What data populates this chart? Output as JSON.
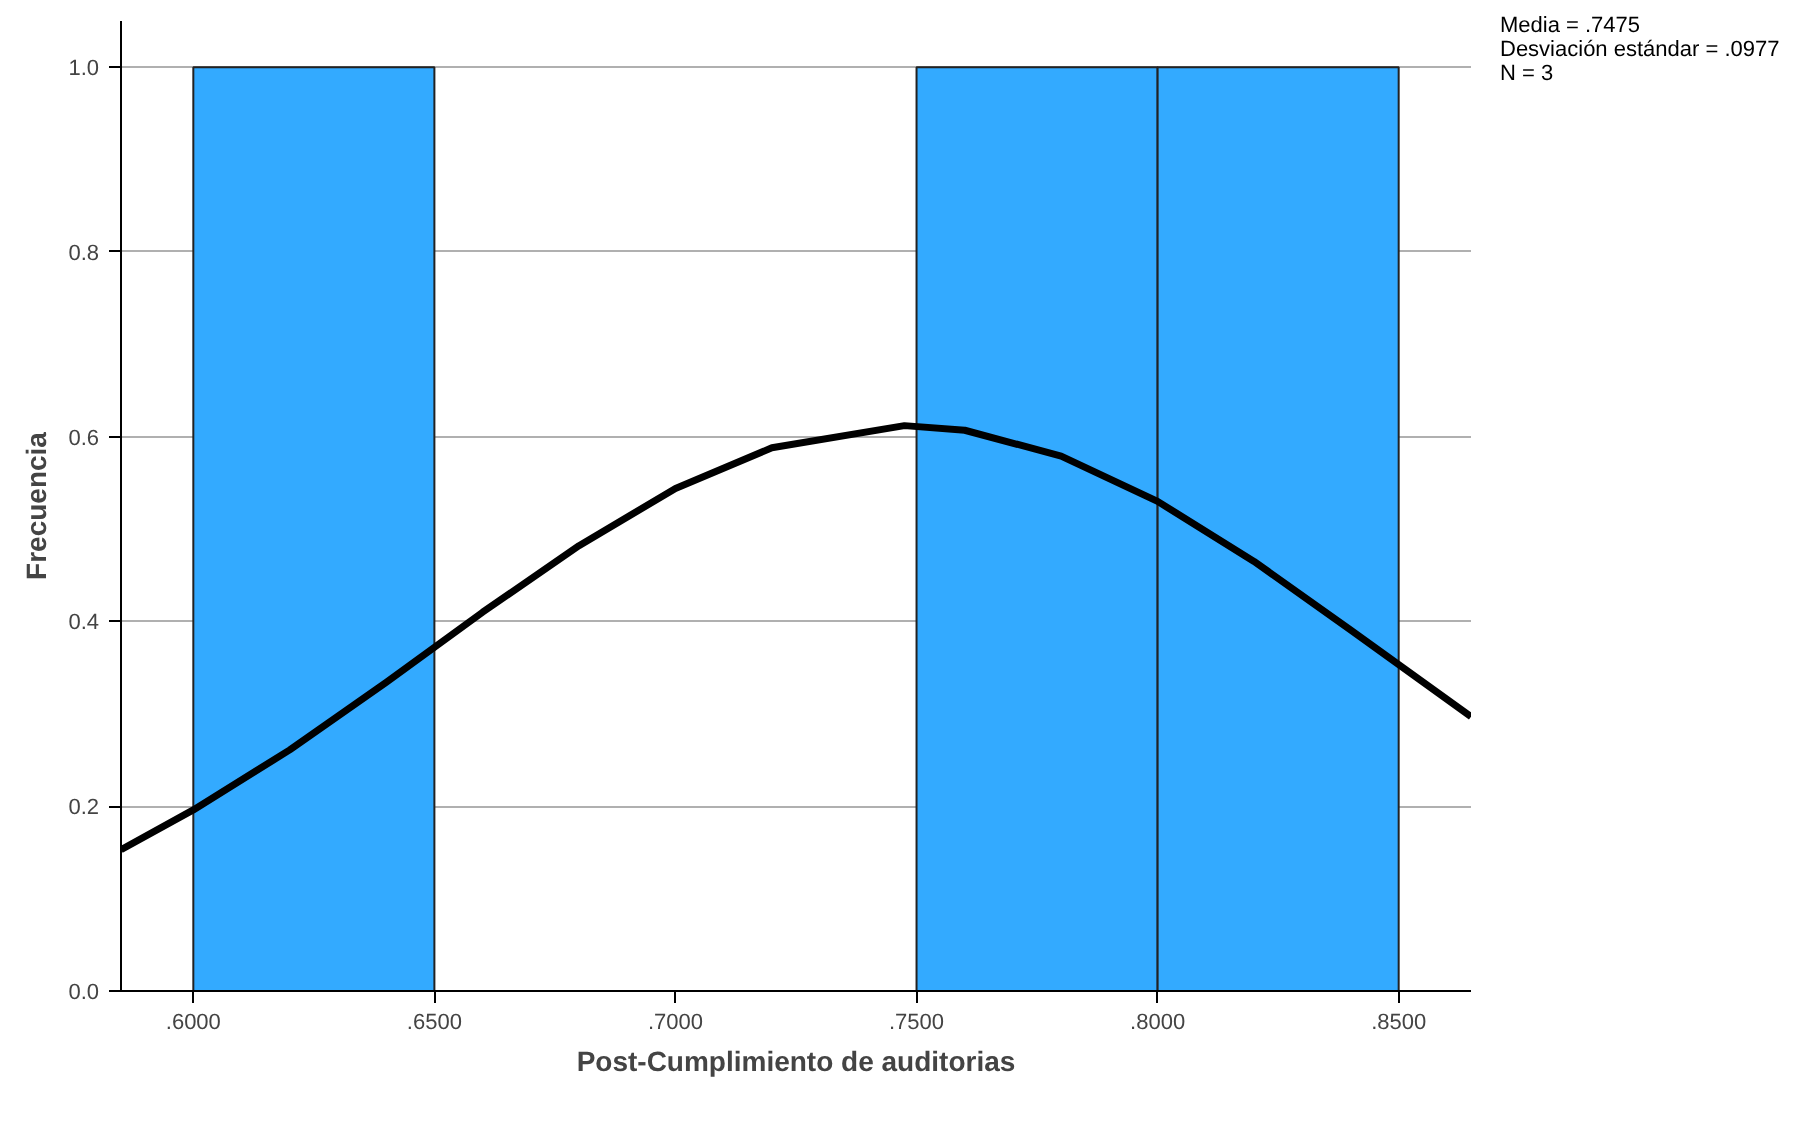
{
  "chart_data": {
    "type": "histogram",
    "xlabel": "Post-Cumplimiento de auditorias",
    "ylabel": "Frecuencia",
    "bins": [
      0.6,
      0.65,
      0.7,
      0.75,
      0.8,
      0.85
    ],
    "series": [
      {
        "color": "#33aaff",
        "values": [
          1,
          0,
          0,
          1,
          1
        ]
      },
      {
        "type": "line",
        "color": "#000000",
        "x": [
          0.585,
          0.6,
          0.62,
          0.64,
          0.66,
          0.68,
          0.7,
          0.72,
          0.7475,
          0.76,
          0.78,
          0.8,
          0.82,
          0.84,
          0.865
        ],
        "values": [
          0.153,
          0.196,
          0.261,
          0.334,
          0.41,
          0.482,
          0.544,
          0.588,
          0.612,
          0.607,
          0.579,
          0.53,
          0.465,
          0.391,
          0.297
        ]
      }
    ],
    "xlim": [
      0.585,
      0.865
    ],
    "ylim": [
      0,
      1.05
    ],
    "xticks": [
      {
        "value": 0.6,
        "label": ".6000"
      },
      {
        "value": 0.65,
        "label": ".6500"
      },
      {
        "value": 0.7,
        "label": ".7000"
      },
      {
        "value": 0.75,
        "label": ".7500"
      },
      {
        "value": 0.8,
        "label": ".8000"
      },
      {
        "value": 0.85,
        "label": ".8500"
      }
    ],
    "yticks": [
      {
        "value": 0,
        "label": "0.0"
      },
      {
        "value": 0.2,
        "label": "0.2"
      },
      {
        "value": 0.4,
        "label": "0.4"
      },
      {
        "value": 0.6,
        "label": "0.6"
      },
      {
        "value": 0.8,
        "label": "0.8"
      },
      {
        "value": 1.0,
        "label": "1.0"
      }
    ],
    "grid": "y",
    "marker": "none",
    "line_style": "solid",
    "annotations": [
      "Media = .7475",
      "Desviación estándar = .0977",
      "N = 3"
    ]
  }
}
